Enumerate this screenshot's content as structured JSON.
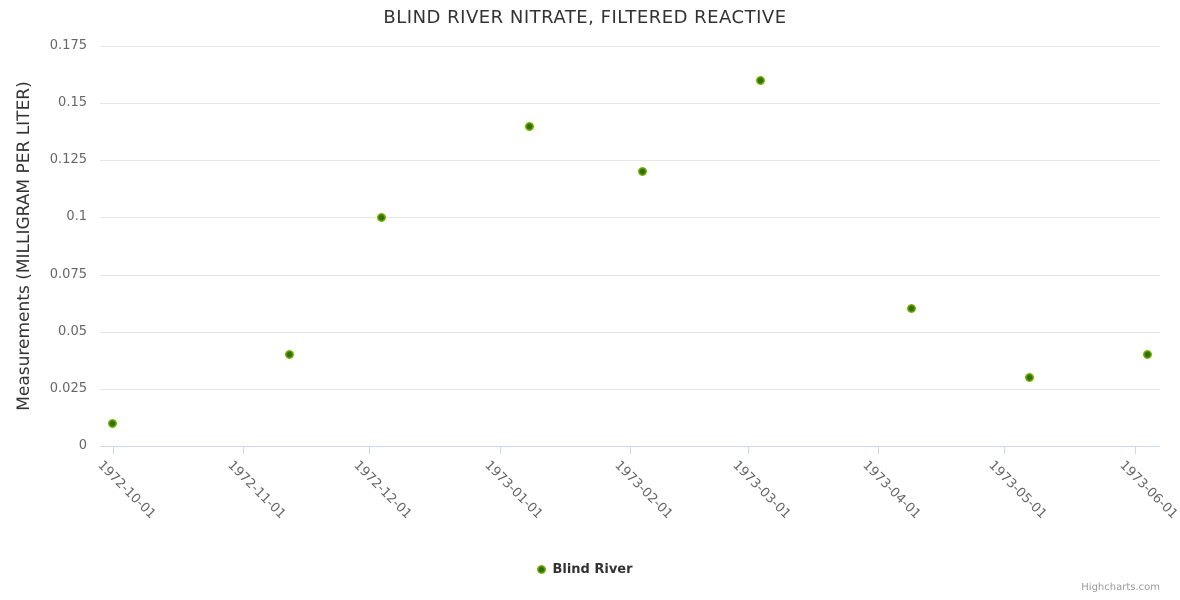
{
  "title": "BLIND RIVER NITRATE, FILTERED REACTIVE",
  "legend": {
    "label": "Blind River"
  },
  "credits": {
    "label": "Highcharts.com"
  },
  "colors": {
    "title_text": "#333333",
    "axis_label_text": "#666666",
    "axis_line": "#ccd6eb",
    "gridline": "#e6e6e6",
    "marker_outer": "#7cb500",
    "marker_inner": "#2f6e00",
    "credits_text": "#999999"
  },
  "chart_data": {
    "type": "scatter",
    "title": "BLIND RIVER NITRATE, FILTERED REACTIVE",
    "xlabel": "",
    "ylabel": "Measurements (MILLIGRAM PER LITER)",
    "ylim": [
      0,
      0.175
    ],
    "y_ticks": [
      0,
      0.025,
      0.05,
      0.075,
      0.1,
      0.125,
      0.15,
      0.175
    ],
    "x_ticks": [
      "1972-10-01",
      "1972-11-01",
      "1972-12-01",
      "1973-01-01",
      "1973-02-01",
      "1973-03-01",
      "1973-04-01",
      "1973-05-01",
      "1973-06-01"
    ],
    "x_range": [
      "1972-09-28",
      "1973-06-07"
    ],
    "grid": true,
    "legend_position": "bottom-center",
    "series": [
      {
        "name": "Blind River",
        "color": "#7cb500",
        "points": [
          {
            "date": "1972-10-01",
            "value": 0.01
          },
          {
            "date": "1972-11-12",
            "value": 0.04
          },
          {
            "date": "1972-12-04",
            "value": 0.1
          },
          {
            "date": "1973-01-08",
            "value": 0.14
          },
          {
            "date": "1973-02-04",
            "value": 0.12
          },
          {
            "date": "1973-03-04",
            "value": 0.16
          },
          {
            "date": "1973-04-09",
            "value": 0.06
          },
          {
            "date": "1973-05-07",
            "value": 0.03
          },
          {
            "date": "1973-06-04",
            "value": 0.04
          }
        ]
      }
    ]
  }
}
